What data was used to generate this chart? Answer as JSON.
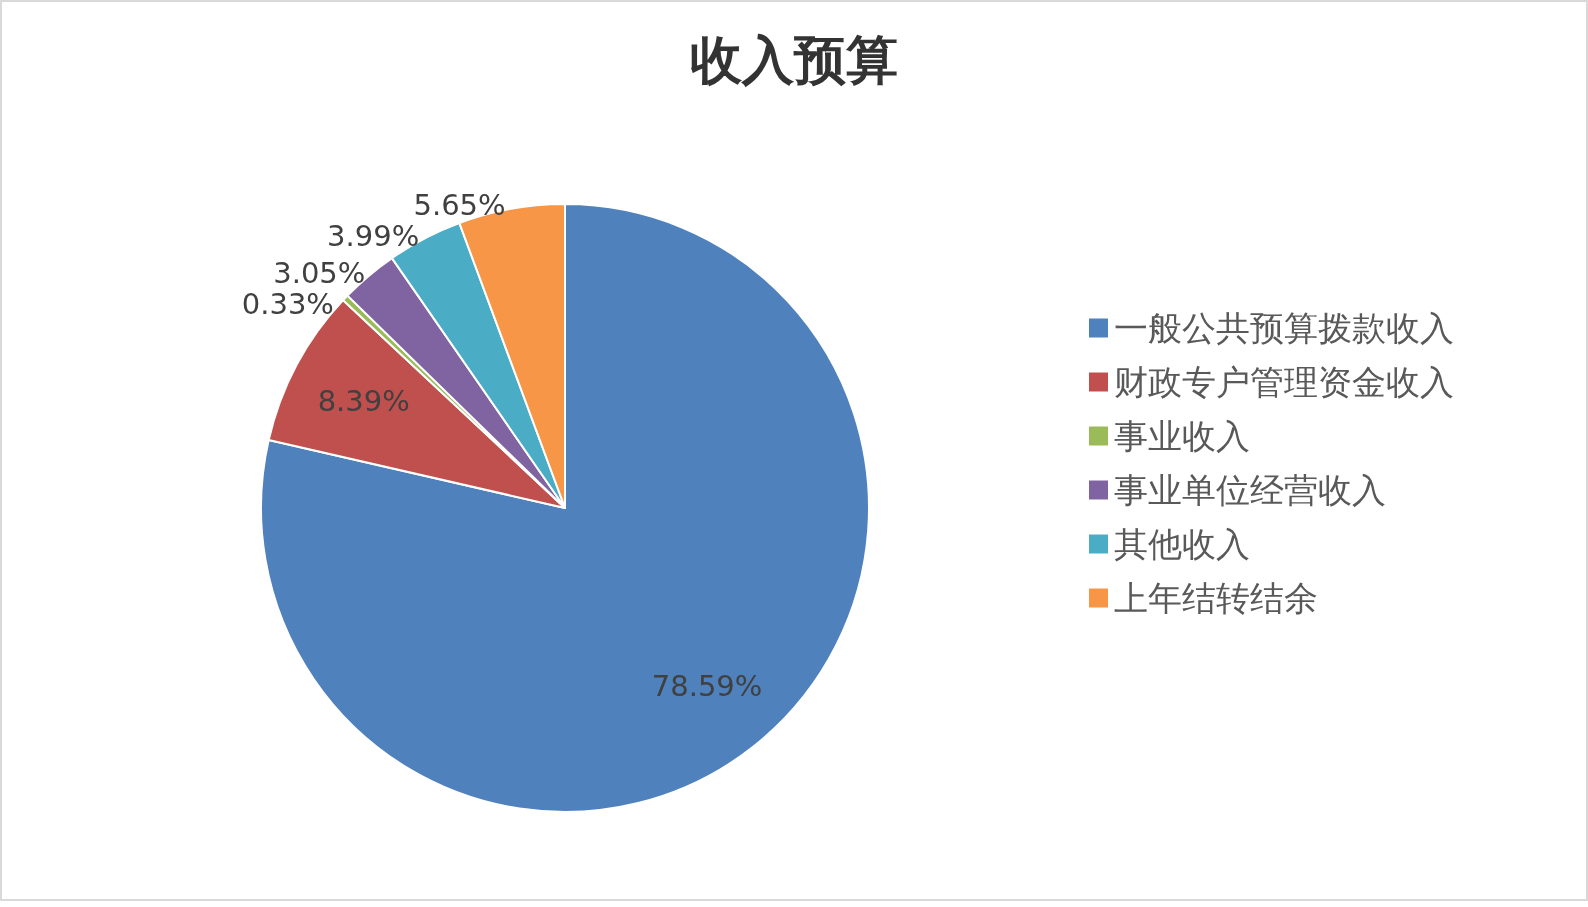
{
  "chart_data": {
    "type": "pie",
    "title": "收入预算",
    "categories": [
      "一般公共预算拨款收入",
      "财政专户管理资金收入",
      "事业收入",
      "事业单位经营收入",
      "其他收入",
      "上年结转结余"
    ],
    "values": [
      78.59,
      8.39,
      0.33,
      3.05,
      3.99,
      5.65
    ],
    "colors": [
      "#4f81bd",
      "#c0504d",
      "#9bbb59",
      "#8064a2",
      "#4bacc6",
      "#f79646"
    ],
    "value_labels": [
      "78.59%",
      "8.39%",
      "0.33%",
      "3.05%",
      "3.99%",
      "5.65%"
    ],
    "legend": "right"
  }
}
